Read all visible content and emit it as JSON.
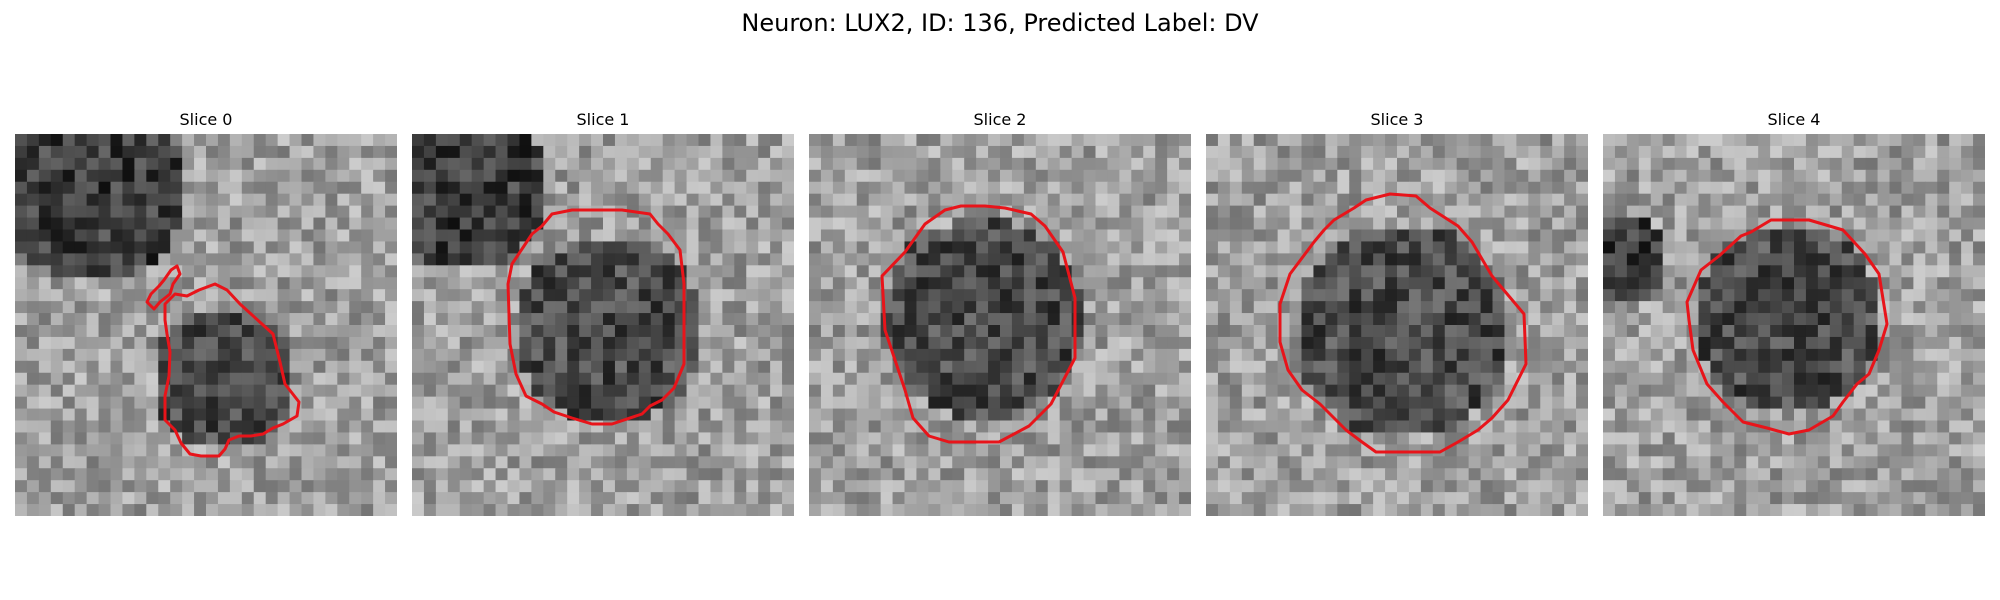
{
  "figure": {
    "title": "Neuron: LUX2, ID: 136, Predicted Label: DV",
    "outline_color": "#e8141a"
  },
  "panels": [
    {
      "title": "Slice 0"
    },
    {
      "title": "Slice 1"
    },
    {
      "title": "Slice 2"
    },
    {
      "title": "Slice 3"
    },
    {
      "title": "Slice 4"
    }
  ]
}
